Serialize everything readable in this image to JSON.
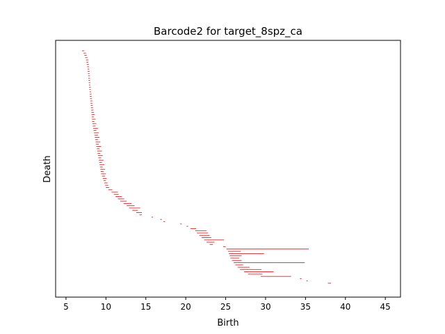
{
  "chart_data": {
    "type": "barcode",
    "title": "Barcode2 for target_8spz_ca",
    "xlabel": "Birth",
    "ylabel": "Death",
    "xlim": [
      3.7,
      46.9
    ],
    "xticks": [
      5,
      10,
      15,
      20,
      25,
      30,
      35,
      40,
      45
    ],
    "yticks": [],
    "grid": false,
    "legend": "none",
    "bar_color": "#d62728",
    "bars": [
      {
        "start": 7.0,
        "end": 7.3
      },
      {
        "start": 7.2,
        "end": 7.5
      },
      {
        "start": 7.3,
        "end": 7.6
      },
      {
        "start": 7.4,
        "end": 7.7
      },
      {
        "start": 7.5,
        "end": 7.8
      },
      {
        "start": 7.55,
        "end": 7.8
      },
      {
        "start": 7.6,
        "end": 7.85
      },
      {
        "start": 7.65,
        "end": 7.9
      },
      {
        "start": 7.7,
        "end": 7.9
      },
      {
        "start": 7.72,
        "end": 7.95
      },
      {
        "start": 7.75,
        "end": 7.95
      },
      {
        "start": 7.78,
        "end": 8.0
      },
      {
        "start": 7.8,
        "end": 8.0
      },
      {
        "start": 7.82,
        "end": 8.02
      },
      {
        "start": 7.85,
        "end": 8.05
      },
      {
        "start": 7.87,
        "end": 8.05
      },
      {
        "start": 7.9,
        "end": 8.1
      },
      {
        "start": 7.92,
        "end": 8.1
      },
      {
        "start": 7.95,
        "end": 8.15
      },
      {
        "start": 7.97,
        "end": 8.2
      },
      {
        "start": 8.0,
        "end": 8.2
      },
      {
        "start": 8.02,
        "end": 8.25
      },
      {
        "start": 8.05,
        "end": 8.3
      },
      {
        "start": 8.08,
        "end": 8.3
      },
      {
        "start": 8.1,
        "end": 8.35
      },
      {
        "start": 8.12,
        "end": 8.4
      },
      {
        "start": 8.15,
        "end": 8.45
      },
      {
        "start": 8.18,
        "end": 8.5
      },
      {
        "start": 8.2,
        "end": 8.6
      },
      {
        "start": 8.22,
        "end": 8.5
      },
      {
        "start": 8.25,
        "end": 8.7
      },
      {
        "start": 8.28,
        "end": 8.55
      },
      {
        "start": 8.3,
        "end": 8.8
      },
      {
        "start": 8.35,
        "end": 8.7
      },
      {
        "start": 8.4,
        "end": 9.0
      },
      {
        "start": 8.45,
        "end": 8.8
      },
      {
        "start": 8.5,
        "end": 9.1
      },
      {
        "start": 8.55,
        "end": 9.0
      },
      {
        "start": 8.6,
        "end": 9.2
      },
      {
        "start": 8.65,
        "end": 9.0
      },
      {
        "start": 8.7,
        "end": 9.3
      },
      {
        "start": 8.75,
        "end": 9.1
      },
      {
        "start": 8.8,
        "end": 9.4
      },
      {
        "start": 8.85,
        "end": 9.2
      },
      {
        "start": 8.9,
        "end": 9.5
      },
      {
        "start": 8.95,
        "end": 9.3
      },
      {
        "start": 9.0,
        "end": 9.6
      },
      {
        "start": 9.05,
        "end": 9.4
      },
      {
        "start": 9.1,
        "end": 9.7
      },
      {
        "start": 9.15,
        "end": 9.5
      },
      {
        "start": 9.2,
        "end": 9.8
      },
      {
        "start": 9.25,
        "end": 9.6
      },
      {
        "start": 9.3,
        "end": 9.9
      },
      {
        "start": 9.35,
        "end": 9.7
      },
      {
        "start": 9.4,
        "end": 10.0
      },
      {
        "start": 9.5,
        "end": 9.9
      },
      {
        "start": 9.6,
        "end": 10.1
      },
      {
        "start": 9.7,
        "end": 10.0
      },
      {
        "start": 9.8,
        "end": 10.2
      },
      {
        "start": 9.9,
        "end": 10.3
      },
      {
        "start": 10.0,
        "end": 10.4
      },
      {
        "start": 10.3,
        "end": 10.8
      },
      {
        "start": 10.7,
        "end": 11.5
      },
      {
        "start": 11.0,
        "end": 11.6
      },
      {
        "start": 11.2,
        "end": 12.0
      },
      {
        "start": 11.5,
        "end": 12.3
      },
      {
        "start": 11.8,
        "end": 12.6
      },
      {
        "start": 12.2,
        "end": 13.2
      },
      {
        "start": 12.6,
        "end": 13.6
      },
      {
        "start": 12.9,
        "end": 14.3
      },
      {
        "start": 13.3,
        "end": 14.0
      },
      {
        "start": 13.8,
        "end": 14.5
      },
      {
        "start": 14.2,
        "end": 14.5
      },
      {
        "start": 15.7,
        "end": 15.9
      },
      {
        "start": 16.8,
        "end": 17.0
      },
      {
        "start": 17.2,
        "end": 17.4
      },
      {
        "start": 19.3,
        "end": 19.5
      },
      {
        "start": 20.1,
        "end": 20.3
      },
      {
        "start": 20.6,
        "end": 21.3
      },
      {
        "start": 21.2,
        "end": 22.6
      },
      {
        "start": 21.4,
        "end": 22.8
      },
      {
        "start": 21.7,
        "end": 23.0
      },
      {
        "start": 22.0,
        "end": 23.2
      },
      {
        "start": 22.3,
        "end": 24.8
      },
      {
        "start": 22.6,
        "end": 23.6
      },
      {
        "start": 23.0,
        "end": 23.4
      },
      {
        "start": 24.7,
        "end": 25.0
      },
      {
        "start": 25.1,
        "end": 35.4
      },
      {
        "start": 25.3,
        "end": 26.9
      },
      {
        "start": 25.4,
        "end": 29.8
      },
      {
        "start": 25.5,
        "end": 27.0
      },
      {
        "start": 25.6,
        "end": 26.7
      },
      {
        "start": 25.8,
        "end": 27.0
      },
      {
        "start": 26.0,
        "end": 34.9
      },
      {
        "start": 26.2,
        "end": 27.2
      },
      {
        "start": 26.5,
        "end": 28.0
      },
      {
        "start": 26.8,
        "end": 29.5
      },
      {
        "start": 27.3,
        "end": 31.0
      },
      {
        "start": 27.8,
        "end": 29.6
      },
      {
        "start": 29.4,
        "end": 33.2
      },
      {
        "start": 34.3,
        "end": 34.5
      },
      {
        "start": 35.1,
        "end": 35.3
      },
      {
        "start": 37.8,
        "end": 38.2
      }
    ]
  }
}
